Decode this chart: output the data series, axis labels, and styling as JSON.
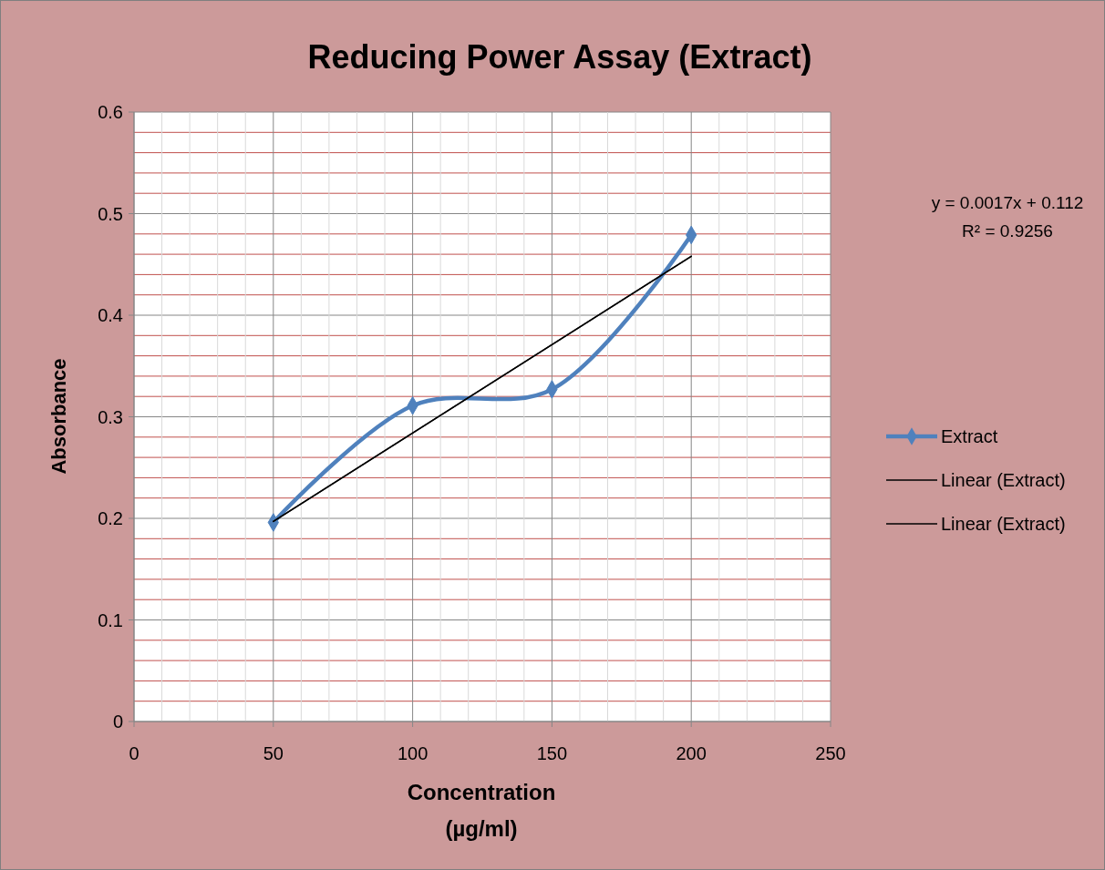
{
  "chart_data": {
    "type": "line",
    "title": "Reducing Power Assay (Extract)",
    "xlabel": "Concentration\n(µg/ml)",
    "ylabel": "Absorbance",
    "annotations": [
      "y = 0.0017x + 0.112",
      "R² = 0.9256"
    ],
    "series": [
      {
        "name": "Extract",
        "color": "#4f81bd",
        "x": [
          50,
          100,
          150,
          200
        ],
        "values": [
          0.196,
          0.311,
          0.327,
          0.479
        ],
        "marker": "diamond"
      },
      {
        "name": "Linear (Extract)",
        "color": "#000000",
        "x": [
          50,
          200
        ],
        "values": [
          0.197,
          0.458
        ],
        "marker": "none"
      },
      {
        "name": "Linear (Extract)",
        "color": "#000000",
        "x": [
          50,
          200
        ],
        "values": [
          0.197,
          0.458
        ],
        "marker": "none"
      }
    ],
    "xlim": [
      0,
      250
    ],
    "xticks": [
      0,
      {
        "value": 10,
        "label": null
      },
      {
        "value": 20,
        "label": null
      },
      {
        "value": 30,
        "label": null
      },
      {
        "value": 40,
        "label": null
      },
      50,
      {
        "value": 60,
        "label": null
      },
      {
        "value": 70,
        "label": null
      },
      {
        "value": 80,
        "label": null
      },
      {
        "value": 90,
        "label": null
      },
      100,
      {
        "value": 110,
        "label": null
      },
      {
        "value": 120,
        "label": null
      },
      {
        "value": 130,
        "label": null
      },
      {
        "value": 140,
        "label": null
      },
      150,
      {
        "value": 160,
        "label": null
      },
      {
        "value": 170,
        "label": null
      },
      {
        "value": 180,
        "label": null
      },
      {
        "value": 190,
        "label": null
      },
      200,
      {
        "value": 210,
        "label": null
      },
      {
        "value": 220,
        "label": null
      },
      {
        "value": 230,
        "label": null
      },
      {
        "value": 240,
        "label": null
      },
      250
    ],
    "ylim": [
      0,
      0.6
    ],
    "yticks": [
      0,
      {
        "value": 0.02,
        "label": null
      },
      {
        "value": 0.04,
        "label": null
      },
      {
        "value": 0.06,
        "label": null
      },
      {
        "value": 0.08,
        "label": null
      },
      0.1,
      {
        "value": 0.12,
        "label": null
      },
      {
        "value": 0.14,
        "label": null
      },
      {
        "value": 0.16,
        "label": null
      },
      {
        "value": 0.18,
        "label": null
      },
      0.2,
      {
        "value": 0.22,
        "label": null
      },
      {
        "value": 0.24,
        "label": null
      },
      {
        "value": 0.26,
        "label": null
      },
      {
        "value": 0.28,
        "label": null
      },
      0.3,
      {
        "value": 0.32,
        "label": null
      },
      {
        "value": 0.34,
        "label": null
      },
      {
        "value": 0.36,
        "label": null
      },
      {
        "value": 0.38,
        "label": null
      },
      0.4,
      {
        "value": 0.42,
        "label": null
      },
      {
        "value": 0.44,
        "label": null
      },
      {
        "value": 0.46,
        "label": null
      },
      {
        "value": 0.48,
        "label": null
      },
      0.5,
      {
        "value": 0.52,
        "label": null
      },
      {
        "value": 0.54,
        "label": null
      },
      {
        "value": 0.56,
        "label": null
      },
      {
        "value": 0.58,
        "label": null
      },
      0.6
    ],
    "grid": true,
    "legend": "right"
  }
}
